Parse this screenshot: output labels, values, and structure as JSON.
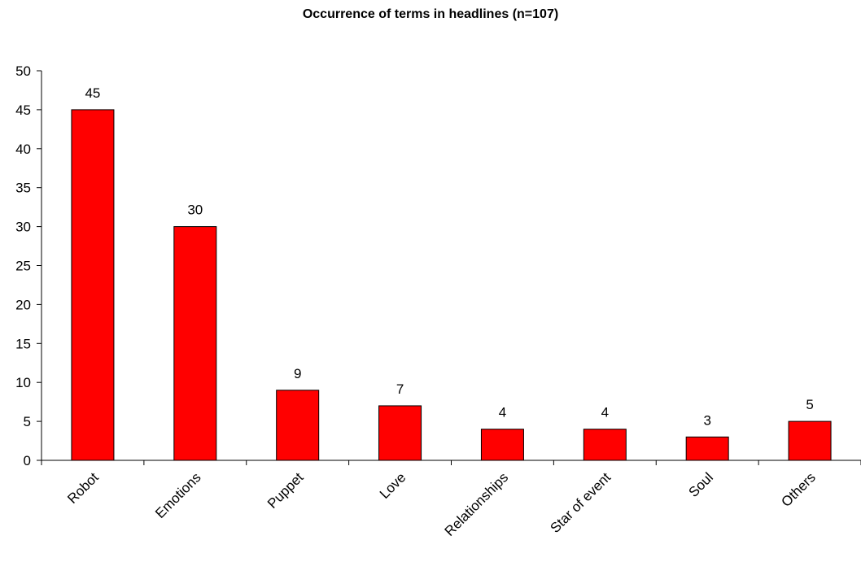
{
  "chart_data": {
    "type": "bar",
    "title": "Occurrence of terms in headlines (n=107)",
    "xlabel": "",
    "ylabel": "",
    "categories": [
      "Robot",
      "Emotions",
      "Puppet",
      "Love",
      "Relationships",
      "Star of event",
      "Soul",
      "Others"
    ],
    "values": [
      45,
      30,
      9,
      7,
      4,
      4,
      3,
      5
    ],
    "data_labels": [
      "45",
      "30",
      "9",
      "7",
      "4",
      "4",
      "3",
      "5"
    ],
    "ylim": [
      0,
      50
    ],
    "yticks": [
      0,
      5,
      10,
      15,
      20,
      25,
      30,
      35,
      40,
      45,
      50
    ],
    "grid": false,
    "legend": "none",
    "bar_color": "#ff0000",
    "bar_border_color": "#000000"
  }
}
